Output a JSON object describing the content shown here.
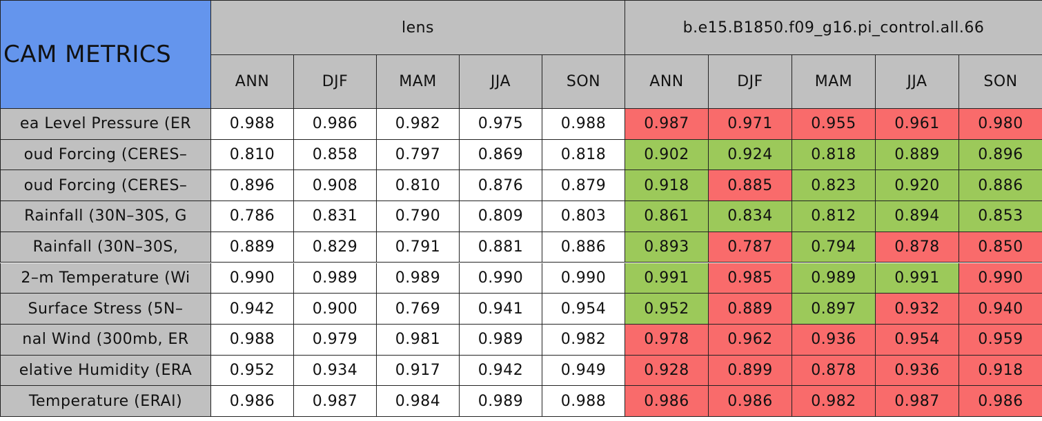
{
  "header": {
    "title": "CAM METRICS",
    "groups": [
      {
        "name": "lens",
        "seasons": [
          "ANN",
          "DJF",
          "MAM",
          "JJA",
          "SON"
        ]
      },
      {
        "name": "b.e15.B1850.f09_g16.pi_control.all.66",
        "seasons": [
          "ANN",
          "DJF",
          "MAM",
          "JJA",
          "SON"
        ]
      }
    ]
  },
  "colors": {
    "red": "#f96b6b",
    "green": "#9cc95a"
  },
  "rows": [
    {
      "label": "ea Level Pressure (ER",
      "values": [
        "0.988",
        "0.986",
        "0.982",
        "0.975",
        "0.988",
        "0.987",
        "0.971",
        "0.955",
        "0.961",
        "0.980"
      ],
      "status": [
        "red",
        "red",
        "red",
        "red",
        "red"
      ]
    },
    {
      "label": "oud Forcing (CERES–",
      "values": [
        "0.810",
        "0.858",
        "0.797",
        "0.869",
        "0.818",
        "0.902",
        "0.924",
        "0.818",
        "0.889",
        "0.896"
      ],
      "status": [
        "green",
        "green",
        "green",
        "green",
        "green"
      ]
    },
    {
      "label": "oud Forcing (CERES–",
      "values": [
        "0.896",
        "0.908",
        "0.810",
        "0.876",
        "0.879",
        "0.918",
        "0.885",
        "0.823",
        "0.920",
        "0.886"
      ],
      "status": [
        "green",
        "red",
        "green",
        "green",
        "green"
      ]
    },
    {
      "label": "Rainfall (30N–30S, G",
      "values": [
        "0.786",
        "0.831",
        "0.790",
        "0.809",
        "0.803",
        "0.861",
        "0.834",
        "0.812",
        "0.894",
        "0.853"
      ],
      "status": [
        "green",
        "green",
        "green",
        "green",
        "green"
      ]
    },
    {
      "label": "Rainfall (30N–30S,",
      "values": [
        "0.889",
        "0.829",
        "0.791",
        "0.881",
        "0.886",
        "0.893",
        "0.787",
        "0.794",
        "0.878",
        "0.850"
      ],
      "status": [
        "green",
        "red",
        "green",
        "red",
        "red"
      ]
    },
    {
      "label": "2–m Temperature (Wi",
      "values": [
        "0.990",
        "0.989",
        "0.989",
        "0.990",
        "0.990",
        "0.991",
        "0.985",
        "0.989",
        "0.991",
        "0.990"
      ],
      "status": [
        "green",
        "red",
        "green",
        "green",
        "red"
      ]
    },
    {
      "label": "Surface Stress (5N–",
      "values": [
        "0.942",
        "0.900",
        "0.769",
        "0.941",
        "0.954",
        "0.952",
        "0.889",
        "0.897",
        "0.932",
        "0.940"
      ],
      "status": [
        "green",
        "red",
        "green",
        "red",
        "red"
      ]
    },
    {
      "label": "nal Wind (300mb, ER",
      "values": [
        "0.988",
        "0.979",
        "0.981",
        "0.989",
        "0.982",
        "0.978",
        "0.962",
        "0.936",
        "0.954",
        "0.959"
      ],
      "status": [
        "red",
        "red",
        "red",
        "red",
        "red"
      ]
    },
    {
      "label": "elative Humidity (ERA",
      "values": [
        "0.952",
        "0.934",
        "0.917",
        "0.942",
        "0.949",
        "0.928",
        "0.899",
        "0.878",
        "0.936",
        "0.918"
      ],
      "status": [
        "red",
        "red",
        "red",
        "red",
        "red"
      ]
    },
    {
      "label": "Temperature (ERAI)",
      "values": [
        "0.986",
        "0.987",
        "0.984",
        "0.989",
        "0.988",
        "0.986",
        "0.986",
        "0.982",
        "0.987",
        "0.986"
      ],
      "status": [
        "red",
        "red",
        "red",
        "red",
        "red"
      ]
    }
  ]
}
